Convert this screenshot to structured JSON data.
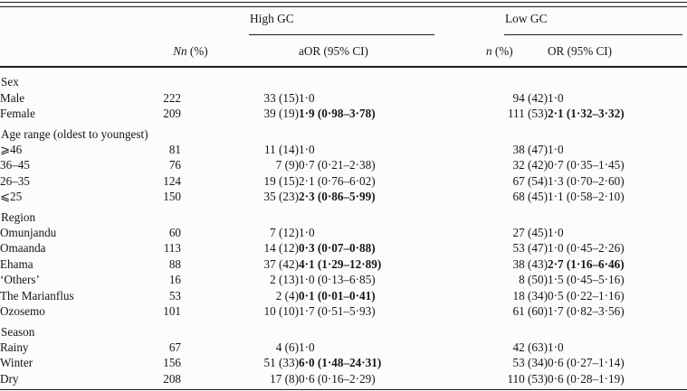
{
  "table": {
    "group_headers": {
      "high": "High GC",
      "low": "Low GC"
    },
    "column_headers": {
      "N": "N",
      "n_var": "n",
      "pct": "(%)",
      "aor": "aOR (95% CI)",
      "or": "OR (95% CI)"
    },
    "sections": [
      {
        "label": "Sex",
        "rows": [
          {
            "label": "Male",
            "N": "222",
            "n_high": "33 (15)",
            "aor": "1·0",
            "aor_bold": false,
            "n_low": "94 (42)",
            "or": "1·0",
            "or_bold": false
          },
          {
            "label": "Female",
            "N": "209",
            "n_high": "39 (19)",
            "aor": "1·9 (0·98–3·78)",
            "aor_bold": true,
            "n_low": "111 (53)",
            "or": "2·1 (1·32–3·32)",
            "or_bold": true
          }
        ]
      },
      {
        "label": "Age range (oldest to youngest)",
        "rows": [
          {
            "label": "⩾46",
            "N": "81",
            "n_high": "11 (14)",
            "aor": "1·0",
            "aor_bold": false,
            "n_low": "38 (47)",
            "or": "1·0",
            "or_bold": false
          },
          {
            "label": "36–45",
            "N": "76",
            "n_high": "7 (9)",
            "aor": "0·7 (0·21–2·38)",
            "aor_bold": false,
            "n_low": "32 (42)",
            "or": "0·7 (0·35–1·45)",
            "or_bold": false
          },
          {
            "label": "26–35",
            "N": "124",
            "n_high": "19 (15)",
            "aor": "2·1 (0·76–6·02)",
            "aor_bold": false,
            "n_low": "67 (54)",
            "or": "1·3 (0·70–2·60)",
            "or_bold": false
          },
          {
            "label": "⩽25",
            "N": "150",
            "n_high": "35 (23)",
            "aor": "2·3 (0·86–5·99)",
            "aor_bold": true,
            "n_low": "68 (45)",
            "or": "1·1 (0·58–2·10)",
            "or_bold": false
          }
        ]
      },
      {
        "label": "Region",
        "rows": [
          {
            "label": "Omunjandu",
            "N": "60",
            "n_high": "7 (12)",
            "aor": "1·0",
            "aor_bold": false,
            "n_low": "27 (45)",
            "or": "1·0",
            "or_bold": false
          },
          {
            "label": "Omaanda",
            "N": "113",
            "n_high": "14 (12)",
            "aor": "0·3 (0·07–0·88)",
            "aor_bold": true,
            "n_low": "53 (47)",
            "or": "1·0 (0·45–2·26)",
            "or_bold": false
          },
          {
            "label": "Ehama",
            "N": "88",
            "n_high": "37 (42)",
            "aor": "4·1 (1·29–12·89)",
            "aor_bold": true,
            "n_low": "38 (43)",
            "or": "2·7 (1·16–6·46)",
            "or_bold": true
          },
          {
            "label": "‘Others’",
            "N": "16",
            "n_high": "2 (13)",
            "aor": "1·0 (0·13–6·85)",
            "aor_bold": false,
            "n_low": "8 (50)",
            "or": "1·5 (0·45–5·16)",
            "or_bold": false
          },
          {
            "label": "The Marianflus",
            "N": "53",
            "n_high": "2 (4)",
            "aor": "0·1 (0·01–0·41)",
            "aor_bold": true,
            "n_low": "18 (34)",
            "or": "0·5 (0·22–1·16)",
            "or_bold": false
          },
          {
            "label": "Ozosemo",
            "N": "101",
            "n_high": "10 (10)",
            "aor": "1·7 (0·51–5·93)",
            "aor_bold": false,
            "n_low": "61 (60)",
            "or": "1·7 (0·82–3·56)",
            "or_bold": false
          }
        ]
      },
      {
        "label": "Season",
        "rows": [
          {
            "label": "Rainy",
            "N": "67",
            "n_high": "4 (6)",
            "aor": "1·0",
            "aor_bold": false,
            "n_low": "42 (63)",
            "or": "1·0",
            "or_bold": false
          },
          {
            "label": "Winter",
            "N": "156",
            "n_high": "51 (33)",
            "aor": "6·0 (1·48–24·31)",
            "aor_bold": true,
            "n_low": "53 (34)",
            "or": "0·6 (0·27–1·14)",
            "or_bold": false
          },
          {
            "label": "Dry",
            "N": "208",
            "n_high": "17 (8)",
            "aor": "0·6 (0·16–2·29)",
            "aor_bold": false,
            "n_low": "110 (53)",
            "or": "0·6 (0·28–1·19)",
            "or_bold": false
          }
        ]
      }
    ]
  }
}
